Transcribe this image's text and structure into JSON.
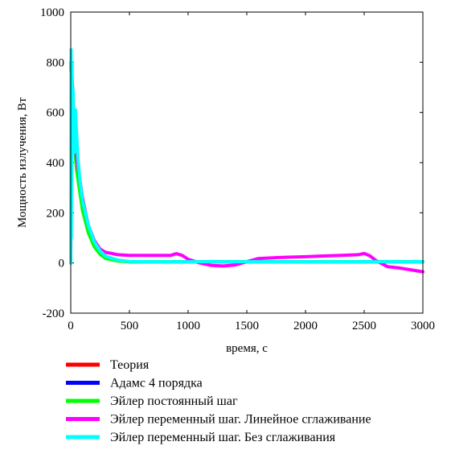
{
  "chart_data": {
    "type": "line",
    "title": "",
    "xlabel": "время, с",
    "ylabel": "Мощность излучения, Вт",
    "xlim": [
      0,
      3000
    ],
    "ylim": [
      -200,
      1000
    ],
    "xticks": [
      0,
      500,
      1000,
      1500,
      2000,
      2500,
      3000
    ],
    "yticks": [
      -200,
      0,
      200,
      400,
      600,
      800,
      1000
    ],
    "grid": false,
    "legend_position": "bottom",
    "series": [
      {
        "name": "Теория",
        "color": "#ff0000",
        "x": [
          0,
          20,
          50,
          100,
          150,
          200,
          250,
          300,
          400,
          500,
          700,
          1000,
          1500,
          2000,
          2500,
          3000
        ],
        "y": [
          800,
          560,
          400,
          240,
          140,
          80,
          45,
          25,
          10,
          5,
          5,
          5,
          5,
          5,
          5,
          5
        ]
      },
      {
        "name": "Адамс 4 порядка",
        "color": "#0000ff",
        "x": [
          0,
          20,
          50,
          100,
          150,
          200,
          250,
          300,
          400,
          500,
          700,
          1000,
          1500,
          2000,
          2500,
          3000
        ],
        "y": [
          800,
          540,
          390,
          230,
          135,
          78,
          44,
          24,
          10,
          5,
          5,
          5,
          5,
          5,
          5,
          5
        ]
      },
      {
        "name": "Эйлер постоянный шаг",
        "color": "#00ff00",
        "x": [
          0,
          20,
          50,
          100,
          150,
          200,
          250,
          300,
          400,
          500,
          700,
          1000,
          1500,
          2000,
          2500,
          3000
        ],
        "y": [
          800,
          520,
          370,
          210,
          120,
          65,
          35,
          18,
          8,
          5,
          5,
          5,
          5,
          5,
          5,
          5
        ]
      },
      {
        "name": "Эйлер переменный шаг. Линейное сглаживание",
        "color": "#ff00ff",
        "x": [
          0,
          10,
          40,
          100,
          150,
          200,
          250,
          300,
          350,
          400,
          500,
          700,
          850,
          900,
          950,
          1000,
          1100,
          1200,
          1300,
          1400,
          1500,
          1600,
          1800,
          2000,
          2100,
          2300,
          2450,
          2500,
          2550,
          2600,
          2700,
          2800,
          3000
        ],
        "y": [
          0,
          750,
          450,
          260,
          150,
          90,
          55,
          42,
          38,
          33,
          30,
          30,
          30,
          37,
          30,
          15,
          0,
          -10,
          -12,
          -8,
          5,
          18,
          22,
          25,
          27,
          30,
          33,
          38,
          28,
          10,
          -15,
          -20,
          -35
        ]
      },
      {
        "name": "Эйлер переменный шаг. Без сглаживания",
        "color": "#00ffff",
        "x": [
          0,
          3,
          5,
          10,
          15,
          20,
          30,
          40,
          60,
          80,
          100,
          150,
          200,
          250,
          300,
          400,
          500,
          700,
          1000,
          1500,
          2000,
          2500,
          3000
        ],
        "y": [
          0,
          850,
          100,
          800,
          500,
          690,
          440,
          610,
          420,
          320,
          250,
          150,
          85,
          48,
          26,
          12,
          6,
          5,
          5,
          5,
          5,
          5,
          5
        ]
      }
    ]
  }
}
